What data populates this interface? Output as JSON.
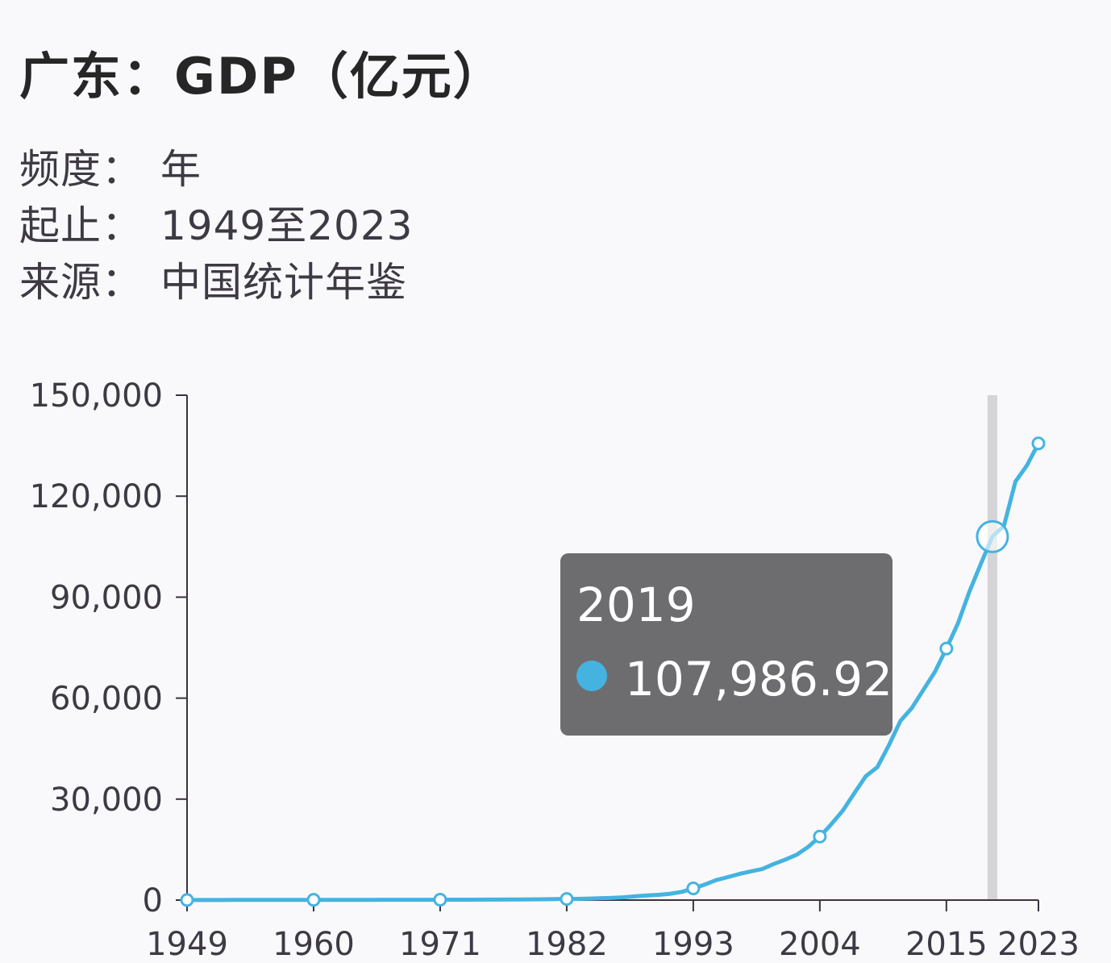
{
  "title": "广东：GDP（亿元）",
  "meta": [
    {
      "key": "频度：",
      "value": "年"
    },
    {
      "key": "起止：",
      "value": "1949至2023"
    },
    {
      "key": "来源：",
      "value": "中国统计年鉴"
    }
  ],
  "colors": {
    "line": "#45b3e0",
    "axis": "#3a3340",
    "marker": "#d4d4d8",
    "tooltip_bg": "#6d6d70"
  },
  "tooltip": {
    "year": "2019",
    "value": "107,986.92"
  },
  "chart_data": {
    "type": "line",
    "x_ticks": [
      "1949",
      "1960",
      "1971",
      "1982",
      "1993",
      "2004",
      "2015",
      "2023"
    ],
    "y_ticks": [
      "0",
      "30,000",
      "60,000",
      "90,000",
      "120,000",
      "150,000"
    ],
    "ylim": [
      0,
      150000
    ],
    "xlim": [
      1949,
      2023
    ],
    "legend": "none",
    "grid": false,
    "hover_year": 2019,
    "series": [
      {
        "x": [
          1949,
          1950,
          1951,
          1952,
          1953,
          1954,
          1955,
          1956,
          1957,
          1958,
          1959,
          1960,
          1961,
          1962,
          1963,
          1964,
          1965,
          1966,
          1967,
          1968,
          1969,
          1970,
          1971,
          1972,
          1973,
          1974,
          1975,
          1976,
          1977,
          1978,
          1979,
          1980,
          1981,
          1982,
          1983,
          1984,
          1985,
          1986,
          1987,
          1988,
          1989,
          1990,
          1991,
          1992,
          1993,
          1994,
          1995,
          1996,
          1997,
          1998,
          1999,
          2000,
          2001,
          2002,
          2003,
          2004,
          2005,
          2006,
          2007,
          2008,
          2009,
          2010,
          2011,
          2012,
          2013,
          2014,
          2015,
          2016,
          2017,
          2018,
          2019,
          2020,
          2021,
          2022,
          2023
        ],
        "y": [
          20,
          25,
          30,
          35,
          40,
          45,
          50,
          55,
          60,
          65,
          70,
          75,
          60,
          60,
          65,
          70,
          80,
          90,
          85,
          85,
          95,
          100,
          110,
          115,
          120,
          125,
          140,
          150,
          160,
          186,
          210,
          249,
          290,
          339,
          368,
          458,
          577,
          667,
          846,
          1155,
          1381,
          1559,
          1893,
          2447,
          3469,
          4619,
          5933,
          6835,
          7774,
          8531,
          9250,
          10741,
          12039,
          13502,
          15845,
          18865,
          22557,
          26588,
          31777,
          36797,
          39483,
          46013,
          53210,
          57068,
          62475,
          67810,
          74732,
          82163,
          91649,
          99945,
          107986.92,
          111152,
          124370,
          129118,
          135673
        ]
      }
    ]
  }
}
